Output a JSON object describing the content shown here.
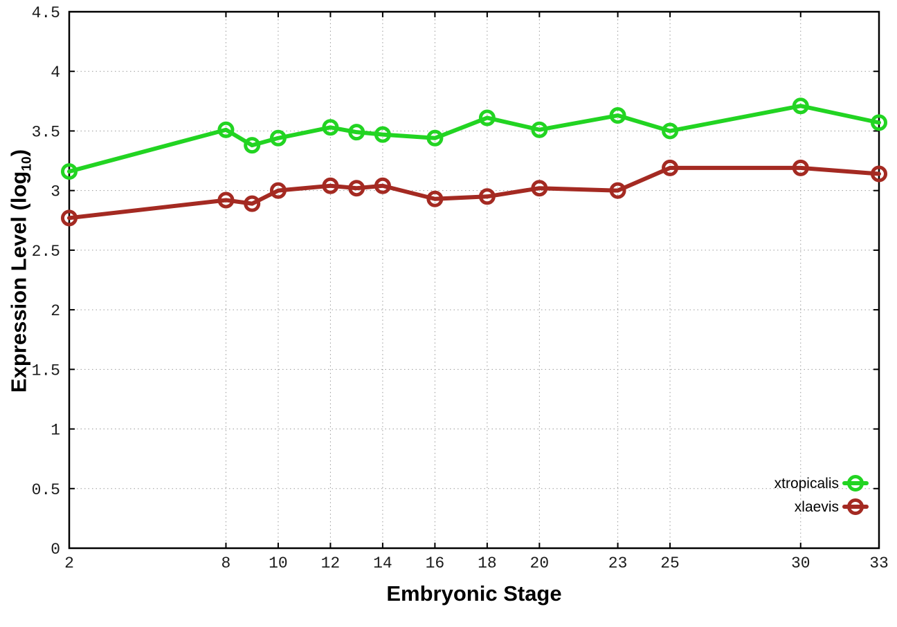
{
  "figure": {
    "background": "#ffffff",
    "xlabel": "Embryonic Stage",
    "ylabel_main": "Expression Level (log",
    "ylabel_sub": "10",
    "ylabel_end": ")"
  },
  "chart_data": {
    "type": "line",
    "title": "",
    "xlabel": "Embryonic Stage",
    "ylabel": "Expression Level (log10)",
    "xlim": [
      2,
      33
    ],
    "ylim": [
      0,
      4.5
    ],
    "grid": true,
    "legend_position": "bottom-right",
    "xticks": [
      2,
      8,
      10,
      12,
      14,
      16,
      18,
      20,
      23,
      25,
      30,
      33
    ],
    "yticks": [
      0,
      0.5,
      1,
      1.5,
      2,
      2.5,
      3,
      3.5,
      4,
      4.5
    ],
    "ytick_labels": [
      "0",
      "0.5",
      "1",
      "1.5",
      "2",
      "2.5",
      "3",
      "3.5",
      "4",
      "4.5"
    ],
    "x": [
      2,
      8,
      9,
      10,
      12,
      13,
      14,
      16,
      18,
      20,
      23,
      25,
      30,
      33
    ],
    "series": [
      {
        "name": "xtropicalis",
        "color": "#22d422",
        "values": [
          3.16,
          3.51,
          3.38,
          3.44,
          3.53,
          3.49,
          3.47,
          3.44,
          3.61,
          3.51,
          3.63,
          3.5,
          3.71,
          3.57
        ]
      },
      {
        "name": "xlaevis",
        "color": "#a42a22",
        "values": [
          2.77,
          2.92,
          2.89,
          3.0,
          3.04,
          3.02,
          3.04,
          2.93,
          2.95,
          3.02,
          3.0,
          3.19,
          3.19,
          3.14
        ]
      }
    ],
    "style": {
      "grid_color": "#9a9a9a",
      "axis_color": "#000000",
      "tick_label_color": "#1a1a1a",
      "line_width": 6,
      "marker": "open-circle",
      "marker_radius": 9.5,
      "marker_stroke": 5
    }
  }
}
